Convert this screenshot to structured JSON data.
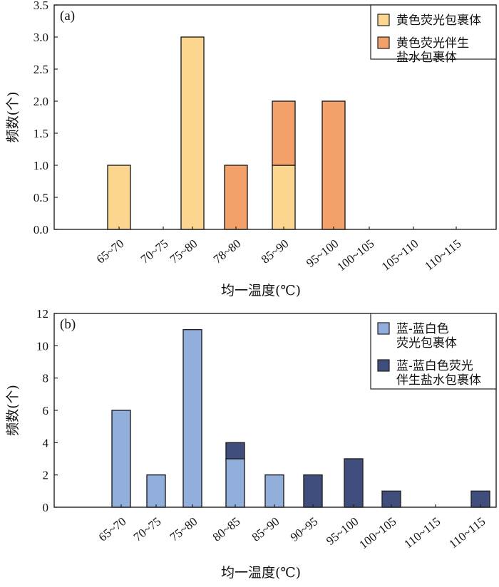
{
  "chart_data": [
    {
      "type": "bar",
      "stacked": true,
      "panel_label": "(a)",
      "categories": [
        "65~70",
        "70~75",
        "75~80",
        "78~80",
        "85~90",
        "95~100",
        "100~105",
        "105~110",
        "110~115"
      ],
      "series": [
        {
          "name": "黄色荧光包裹体",
          "values": [
            1,
            0,
            3,
            0,
            1,
            0,
            0,
            0,
            0
          ],
          "color": "#FCD68F"
        },
        {
          "name": "黄色荧光伴生\n盐水包裹体",
          "values": [
            0,
            0,
            0,
            1,
            1,
            2,
            0,
            0,
            0
          ],
          "color": "#F3A06A"
        }
      ],
      "xlabel": "均一温度(℃)",
      "ylabel": "频数(个)",
      "ylim": [
        0,
        3.5
      ],
      "yticks": [
        "0.0",
        "0.5",
        "1.0",
        "1.5",
        "2.0",
        "2.5",
        "3.0",
        "3.5"
      ],
      "grid": false,
      "legend_position": "top-right"
    },
    {
      "type": "bar",
      "stacked": true,
      "panel_label": "(b)",
      "categories": [
        "65~70",
        "70~75",
        "75~80",
        "80~85",
        "85~90",
        "90~95",
        "95~100",
        "100~105",
        "110~115",
        "110~115"
      ],
      "series": [
        {
          "name": "蓝-蓝白色\n荧光包裹体",
          "values": [
            6,
            2,
            11,
            3,
            2,
            0,
            0,
            0,
            0,
            0
          ],
          "color": "#92AEDB"
        },
        {
          "name": "蓝-蓝白色荧光\n伴生盐水包裹体",
          "values": [
            0,
            0,
            0,
            1,
            0,
            2,
            3,
            1,
            0,
            1
          ],
          "color": "#3F4E7D"
        }
      ],
      "xlabel": "均一温度(℃)",
      "ylabel": "频数(个)",
      "ylim": [
        0,
        12
      ],
      "yticks": [
        "0",
        "2",
        "4",
        "6",
        "8",
        "10",
        "12"
      ],
      "grid": false,
      "legend_position": "top-right"
    }
  ]
}
